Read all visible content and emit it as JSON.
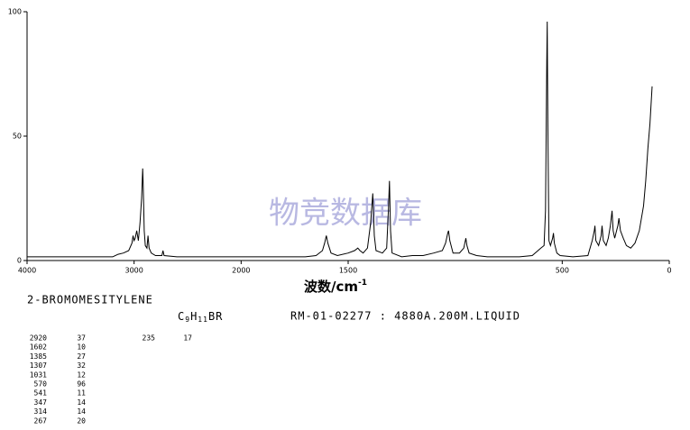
{
  "chart_data": {
    "type": "line",
    "x_label": "波数/cm",
    "x_label_sup": "-1",
    "watermark": "物竞数据库",
    "xlim": [
      4000,
      0
    ],
    "x_scale_change_at": 2000,
    "x_scale_factor_below": 2,
    "xticks": [
      4000,
      3000,
      2000,
      1500,
      500,
      0
    ],
    "ylim": [
      0,
      100
    ],
    "yticks": [
      0,
      50,
      100
    ],
    "series": [
      {
        "color": "#000000",
        "x": [
          4000,
          3200,
          3150,
          3100,
          3050,
          3020,
          3010,
          3000,
          2990,
          2975,
          2960,
          2945,
          2930,
          2920,
          2915,
          2905,
          2895,
          2880,
          2870,
          2860,
          2840,
          2800,
          2740,
          2730,
          2720,
          2600,
          1700,
          1650,
          1620,
          1610,
          1602,
          1595,
          1580,
          1550,
          1500,
          1470,
          1455,
          1445,
          1430,
          1410,
          1395,
          1385,
          1378,
          1370,
          1340,
          1320,
          1312,
          1307,
          1302,
          1295,
          1250,
          1200,
          1150,
          1100,
          1060,
          1045,
          1035,
          1031,
          1025,
          1010,
          980,
          960,
          950,
          945,
          935,
          900,
          850,
          700,
          640,
          600,
          585,
          578,
          572,
          570,
          567,
          562,
          555,
          545,
          541,
          537,
          525,
          510,
          450,
          380,
          360,
          350,
          347,
          343,
          330,
          318,
          314,
          308,
          295,
          285,
          275,
          267,
          262,
          255,
          240,
          235,
          228,
          215,
          200,
          180,
          160,
          140,
          120,
          110,
          100,
          90,
          80
        ],
        "values": [
          1.5,
          1.5,
          2.5,
          3,
          4,
          7,
          10,
          8,
          9,
          12,
          8,
          15,
          25,
          37,
          30,
          12,
          6,
          5,
          10,
          5,
          3,
          2,
          2,
          4,
          2,
          1.5,
          1.5,
          2,
          4,
          7,
          10,
          7,
          3,
          2,
          3,
          4,
          5,
          4,
          3,
          5,
          15,
          27,
          10,
          4,
          3,
          5,
          20,
          32,
          12,
          3,
          1.5,
          2,
          2,
          3,
          4,
          7,
          11,
          12,
          8,
          3,
          3,
          5,
          9,
          6,
          3,
          2,
          1.5,
          1.5,
          2,
          5,
          6,
          20,
          80,
          96,
          55,
          8,
          6,
          9,
          11,
          7,
          3,
          2,
          1.5,
          2,
          8,
          12,
          14,
          8,
          6,
          10,
          14,
          8,
          6,
          9,
          14,
          20,
          12,
          9,
          14,
          17,
          12,
          9,
          6,
          5,
          7,
          12,
          22,
          32,
          45,
          55,
          70
        ]
      }
    ]
  },
  "compound": "2-BROMOMESITYLENE",
  "formula": [
    "C",
    "9",
    "H",
    "11",
    "BR"
  ],
  "record": "RM-01-02277 : 4880A.200M.LIQUID",
  "peaks": [
    [
      2920,
      37
    ],
    [
      1602,
      10
    ],
    [
      1385,
      27
    ],
    [
      1307,
      32
    ],
    [
      1031,
      12
    ],
    [
      570,
      96
    ],
    [
      541,
      11
    ],
    [
      347,
      14
    ],
    [
      314,
      14
    ],
    [
      267,
      20
    ]
  ],
  "peaks2": [
    [
      235,
      17
    ]
  ]
}
